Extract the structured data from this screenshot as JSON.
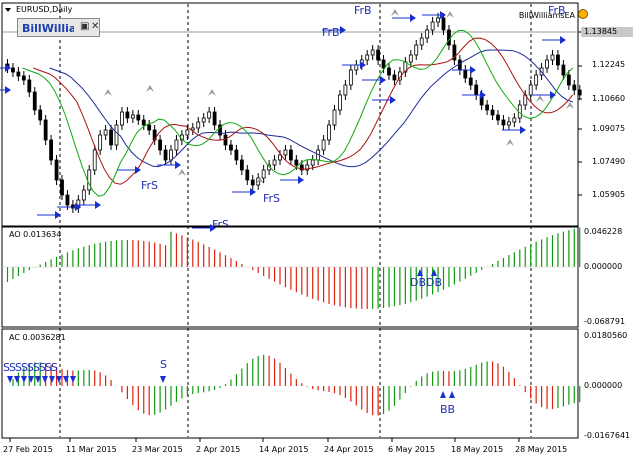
{
  "window": {
    "title": "EURUSD,Daily",
    "minimize_icon": "minimize-icon",
    "close_icon": "close-icon"
  },
  "ea_button": {
    "label": "BillWilliams",
    "restore_icon": "restore-icon",
    "close_icon": "close-icon"
  },
  "expert": {
    "name": "BillWilliamsEA",
    "status_icon": "smiley-icon"
  },
  "main_axis": {
    "labels": [
      "1.13845",
      "1.12245",
      "1.10660",
      "1.09075",
      "1.07490",
      "1.05905"
    ],
    "current": "1.13845"
  },
  "ao": {
    "label": "AO 0.013634",
    "axis": [
      "0.046228",
      "0.000000",
      "-0.068791"
    ]
  },
  "ac": {
    "label": "AC 0.0036281",
    "axis": [
      "0.0180560",
      "0.000000",
      "-0.0167641"
    ]
  },
  "dates": [
    "27 Feb 2015",
    "11 Mar 2015",
    "23 Mar 2015",
    "2 Apr 2015",
    "14 Apr 2015",
    "24 Apr 2015",
    "6 May 2015",
    "18 May 2015",
    "28 May 2015"
  ],
  "signals": {
    "fractals": [
      "FrB",
      "FrB",
      "FrB",
      "FrS",
      "FrS",
      "FrS"
    ],
    "ao_labels": [
      "DB",
      "DB"
    ],
    "ac_labels": [
      "SSSSSSSSS",
      "S",
      "BB"
    ]
  },
  "colors": {
    "bull_bar": "#119911",
    "bear_bar": "#dd2211",
    "arrow": "#1a2fd0",
    "jaw": "#1c2a9a",
    "teeth": "#aa1111",
    "lips": "#11aa11"
  }
}
